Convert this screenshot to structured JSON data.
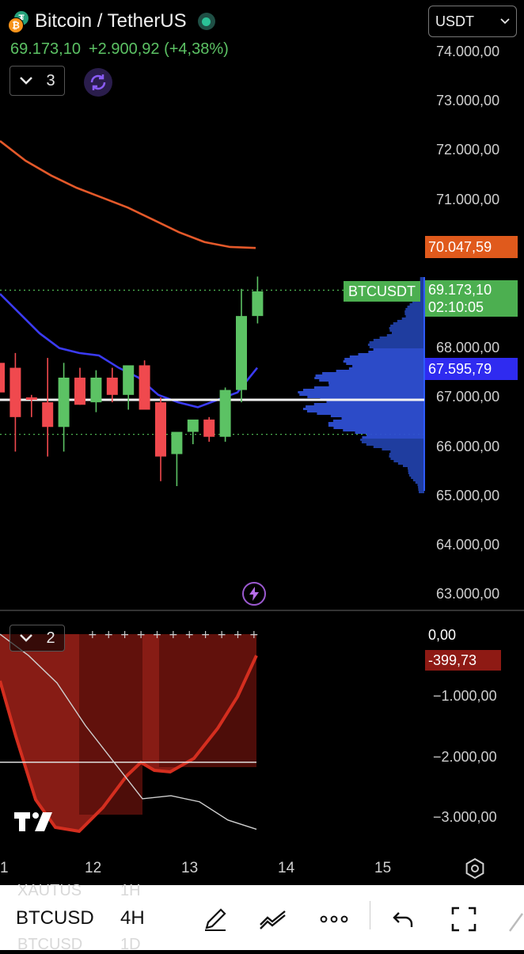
{
  "header": {
    "pair_title": "Bitcoin / TetherUS",
    "last_price": "69.173,10",
    "change": "+2.900,92 (+4,38%)",
    "indicator_count": "3",
    "currency": "USDT",
    "up_color": "#5cc264",
    "down_color": "#f0494e"
  },
  "price_axis": {
    "labels": [
      "74.000,00",
      "73.000,00",
      "72.000,00",
      "71.000,00",
      "68.000,00",
      "67.000,00",
      "66.000,00",
      "65.000,00",
      "64.000,00",
      "63.000,00"
    ],
    "ma_value": "70.047,59",
    "last_price": "69.173,10",
    "countdown": "02:10:05",
    "ma2_value": "67.595,79",
    "symbol_tag": "BTCUSDT"
  },
  "oscillator": {
    "indicator_count": "2",
    "zero_label": "0,00",
    "current_value": "-399,73",
    "labels": [
      "−1.000,00",
      "−2.000,00",
      "−3.000,00"
    ]
  },
  "time_axis": {
    "labels": [
      "1",
      "12",
      "13",
      "14",
      "15"
    ]
  },
  "toolbar": {
    "symbol": "BTCUSD",
    "interval": "4H",
    "symbol_above": "XAUTUS",
    "interval_above": "1H",
    "symbol_below": "BTCUSD",
    "interval_below": "1D"
  },
  "icons": [
    "coin-icon",
    "status-dot",
    "chevron-down-icon",
    "sync-icon",
    "flash-icon",
    "tradingview-logo",
    "settings-icon",
    "pen-icon",
    "drawing-tools-icon",
    "more-icon",
    "undo-icon",
    "fullscreen-icon"
  ],
  "chart_data": {
    "type": "candlestick",
    "x_labels": [
      "1",
      "12",
      "13",
      "14",
      "15"
    ],
    "y_axis_labels": [
      "74.000,00",
      "73.000,00",
      "72.000,00",
      "71.000,00",
      "68.000,00",
      "67.000,00",
      "66.000,00",
      "65.000,00",
      "64.000,00",
      "63.000,00"
    ],
    "ylim": [
      62800,
      74600
    ],
    "candles": [
      {
        "o": 67700,
        "h": 68500,
        "l": 67100,
        "c": 67100
      },
      {
        "o": 67600,
        "h": 67900,
        "l": 65900,
        "c": 66600
      },
      {
        "o": 67000,
        "h": 67050,
        "l": 66600,
        "c": 66950
      },
      {
        "o": 66900,
        "h": 67800,
        "l": 65800,
        "c": 66400
      },
      {
        "o": 66400,
        "h": 67700,
        "l": 65900,
        "c": 67400
      },
      {
        "o": 67400,
        "h": 67600,
        "l": 66850,
        "c": 66850
      },
      {
        "o": 66900,
        "h": 67550,
        "l": 66700,
        "c": 67400
      },
      {
        "o": 67400,
        "h": 67600,
        "l": 66900,
        "c": 67050
      },
      {
        "o": 67050,
        "h": 67600,
        "l": 66750,
        "c": 67650
      },
      {
        "o": 67650,
        "h": 67750,
        "l": 66800,
        "c": 66750
      },
      {
        "o": 66900,
        "h": 67000,
        "l": 65300,
        "c": 65800
      },
      {
        "o": 65850,
        "h": 66250,
        "l": 65200,
        "c": 66300
      },
      {
        "o": 66300,
        "h": 66500,
        "l": 66050,
        "c": 66550
      },
      {
        "o": 66550,
        "h": 66600,
        "l": 66100,
        "c": 66200
      },
      {
        "o": 66200,
        "h": 67200,
        "l": 66100,
        "c": 67150
      },
      {
        "o": 67150,
        "h": 69200,
        "l": 66900,
        "c": 68650
      },
      {
        "o": 68650,
        "h": 69450,
        "l": 68500,
        "c": 69150
      }
    ],
    "ma_orange": [
      72200,
      71800,
      71500,
      71250,
      71050,
      70850,
      70600,
      70350,
      70150,
      70050,
      70030
    ],
    "ma_blue": [
      69100,
      68700,
      68300,
      68000,
      67900,
      67850,
      67600,
      67400,
      67050,
      66900,
      66800,
      66950,
      67100,
      67600
    ],
    "horizontal_line": 66950,
    "last_price_line": 69173.1,
    "lower_dotted_line": 66250,
    "oscillator": {
      "ylim": [
        -3350,
        300
      ],
      "zero": 0,
      "current": -399.73,
      "horizontal_line": -2100,
      "white_line": [
        0,
        -350,
        -800,
        -1500,
        -2100,
        -2700,
        -2650,
        -2750,
        -3050,
        -3200
      ]
    }
  }
}
